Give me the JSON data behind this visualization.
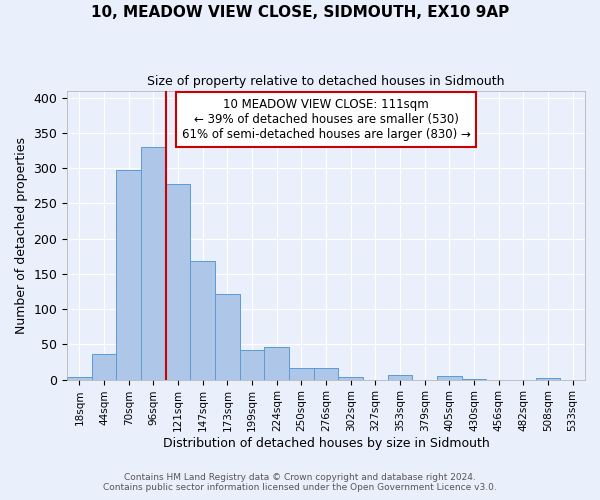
{
  "title": "10, MEADOW VIEW CLOSE, SIDMOUTH, EX10 9AP",
  "subtitle": "Size of property relative to detached houses in Sidmouth",
  "xlabel": "Distribution of detached houses by size in Sidmouth",
  "ylabel": "Number of detached properties",
  "footer_line1": "Contains HM Land Registry data © Crown copyright and database right 2024.",
  "footer_line2": "Contains public sector information licensed under the Open Government Licence v3.0.",
  "bin_labels": [
    "18sqm",
    "44sqm",
    "70sqm",
    "96sqm",
    "121sqm",
    "147sqm",
    "173sqm",
    "199sqm",
    "224sqm",
    "250sqm",
    "276sqm",
    "302sqm",
    "327sqm",
    "353sqm",
    "379sqm",
    "405sqm",
    "430sqm",
    "456sqm",
    "482sqm",
    "508sqm",
    "533sqm"
  ],
  "bar_heights": [
    3,
    37,
    297,
    330,
    278,
    168,
    122,
    42,
    46,
    16,
    17,
    4,
    0,
    6,
    0,
    5,
    1,
    0,
    0,
    2,
    0
  ],
  "bar_color": "#aec6e8",
  "bar_edge_color": "#5b9bd5",
  "background_color": "#eaf0fb",
  "grid_color": "#ffffff",
  "vline_x": 4.0,
  "vline_color": "#cc0000",
  "annotation_text_line1": "10 MEADOW VIEW CLOSE: 111sqm",
  "annotation_text_line2": "← 39% of detached houses are smaller (530)",
  "annotation_text_line3": "61% of semi-detached houses are larger (830) →",
  "box_edge_color": "#cc0000",
  "ylim": [
    0,
    410
  ],
  "yticks": [
    0,
    50,
    100,
    150,
    200,
    250,
    300,
    350,
    400
  ],
  "num_bins": 21
}
